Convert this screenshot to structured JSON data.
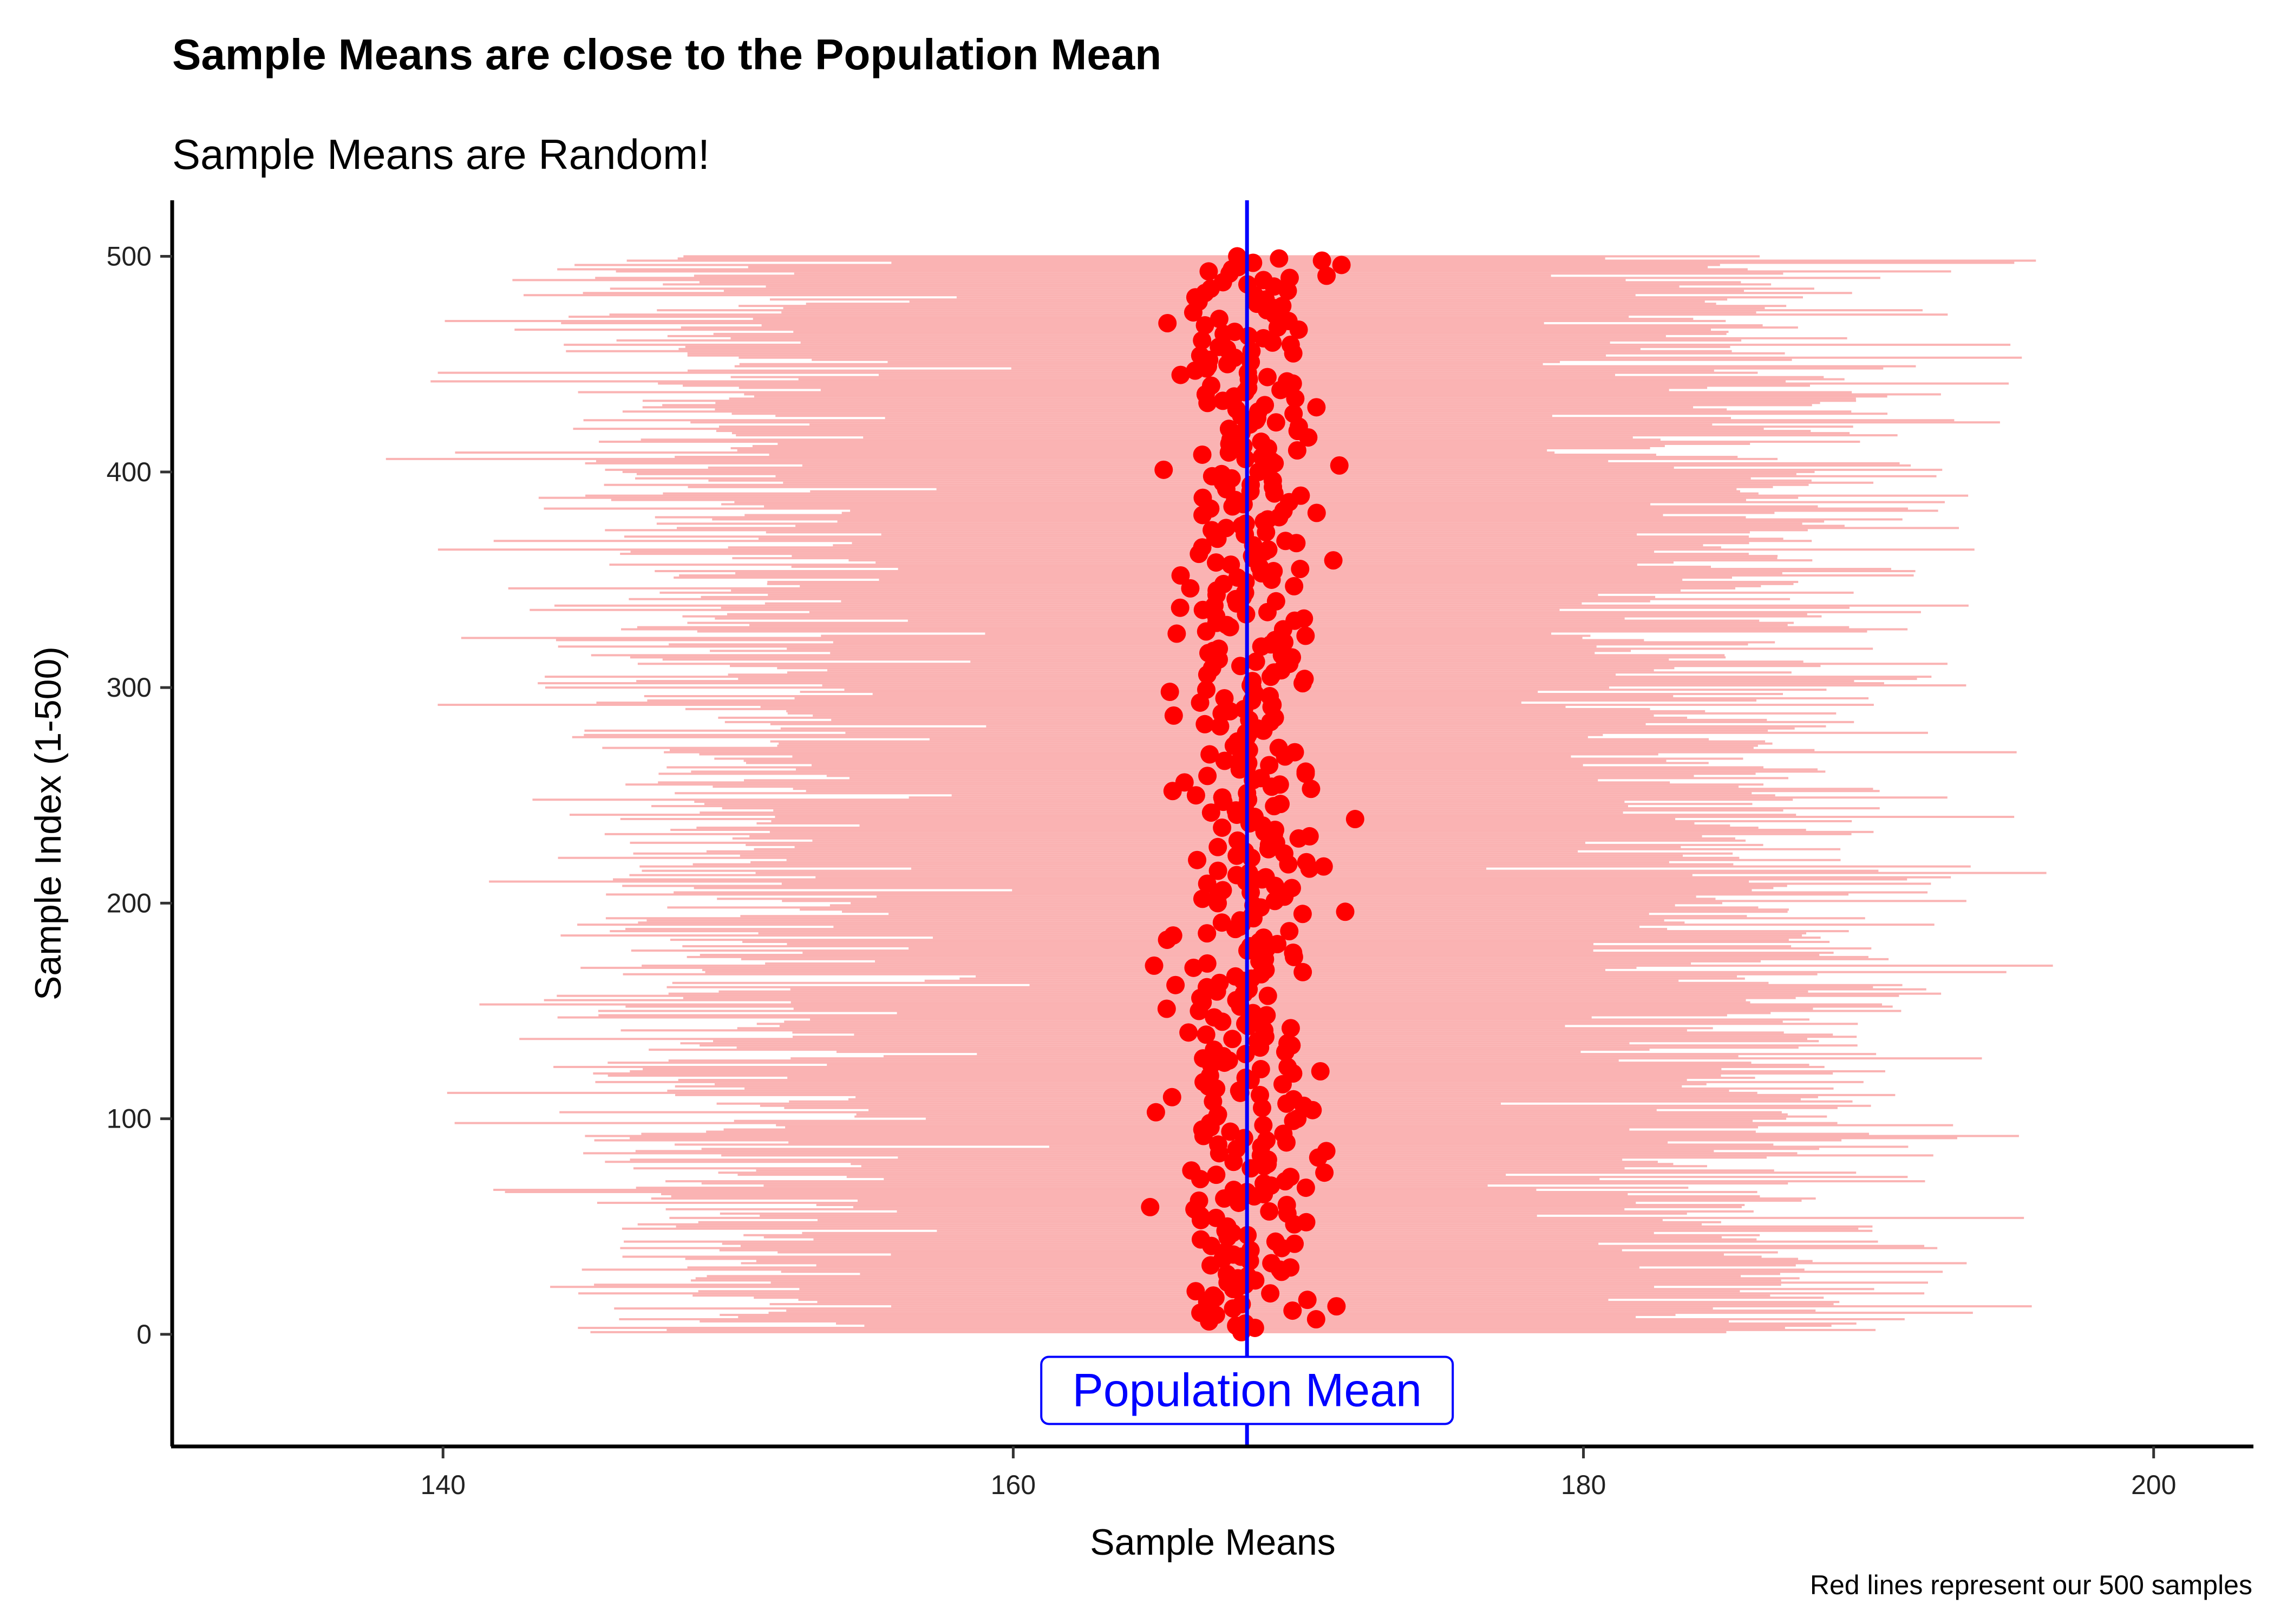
{
  "chart_data": {
    "type": "scatter",
    "title": "Sample Means are close to the Population Mean",
    "subtitle": "Sample Means are Random!",
    "xlabel": "Sample Means",
    "ylabel": "Sample Index (1-500)",
    "caption": "Red lines represent our 500 samples",
    "xlim": [
      130.5,
      203.5
    ],
    "ylim": [
      -52,
      526
    ],
    "x_ticks": [
      140,
      160,
      180,
      200
    ],
    "y_ticks": [
      0,
      100,
      200,
      300,
      400,
      500
    ],
    "grid": false,
    "legend": "none",
    "population_mean": 168.2,
    "annotation": {
      "text": "Population Mean",
      "x": 168.2,
      "y": -26
    },
    "samples": {
      "count": 500,
      "sample_mean_center": 168.2,
      "sample_mean_spread": 1.3,
      "range_min_center": 149.5,
      "range_min_spread": 4.0,
      "range_max_center": 186.5,
      "range_max_spread": 3.8
    },
    "colors": {
      "range_line": "#f9a0a0",
      "mean_point": "#ff0000",
      "population_mean_line": "#0000ff",
      "annotation_text": "#0000ff"
    }
  }
}
